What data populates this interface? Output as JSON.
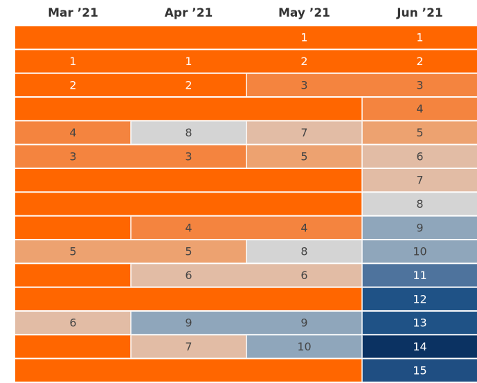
{
  "table": {
    "columns": [
      "Mar ’21",
      "Apr ’21",
      "May ’21",
      "Jun ’21"
    ],
    "rows": [
      [
        null,
        null,
        1,
        1
      ],
      [
        1,
        1,
        2,
        2
      ],
      [
        2,
        2,
        3,
        3
      ],
      [
        null,
        null,
        null,
        4
      ],
      [
        4,
        8,
        7,
        5
      ],
      [
        3,
        3,
        5,
        6
      ],
      [
        null,
        null,
        null,
        7
      ],
      [
        null,
        null,
        null,
        8
      ],
      [
        null,
        4,
        4,
        9
      ],
      [
        5,
        5,
        8,
        10
      ],
      [
        null,
        6,
        6,
        11
      ],
      [
        null,
        null,
        null,
        12
      ],
      [
        6,
        9,
        9,
        13
      ],
      [
        null,
        7,
        10,
        14
      ],
      [
        null,
        null,
        null,
        15
      ]
    ],
    "empty_color": "#ff6600",
    "colors": [
      "#ff6600",
      "#ff6600",
      "#f4843f",
      "#f4843f",
      "#eda270",
      "#e2bca5",
      "#e2bca5",
      "#d4d4d4",
      "#8fa6bb",
      "#8fa6bb",
      "#4e739d",
      "#1f5286",
      "#1f5286",
      "#0b3262",
      "#1f4e82"
    ]
  }
}
